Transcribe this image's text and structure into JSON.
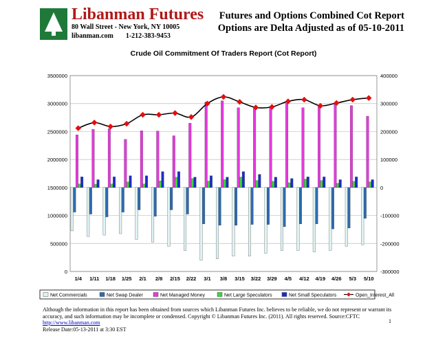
{
  "header": {
    "brand": "Libanman Futures",
    "address": "80 Wall Street - New York, NY 10005",
    "website": "libanman.com",
    "phone": "1-212-383-9453",
    "report_title_1": "Futures and Options Combined Cot Report",
    "report_title_2": "Options are Delta Adjusted as of 05-10-2011"
  },
  "footer": {
    "disclaimer": "Although the information in this report has been obtained from sources which Libanman Futures Inc. believes to be reliable, we do not represent or warrant its accuracy, and such information may be incomplete or condensed. Copyright © Libanman Futures Inc. (2011). All rights reserved. Source:CFTC",
    "link": "http://www.libanman.com",
    "release": "Release Date:05-13-2011 at 3:30 EST",
    "page_number": "1"
  },
  "colors": {
    "net_commercials": "#dff3f3",
    "net_swap_dealer": "#2e6bb0",
    "net_managed_money": "#e838e0",
    "net_large_speculators": "#38d838",
    "net_small_speculators": "#1c2ec8",
    "open_interest": "#e01010",
    "oi_line": "#000000"
  },
  "chart_data": {
    "type": "bar",
    "title": "Crude Oil Commitment Of Traders Report (Cot Report)",
    "categories": [
      "1/4",
      "1/11",
      "1/18",
      "1/25",
      "2/1",
      "2/8",
      "2/15",
      "2/22",
      "3/1",
      "3/8",
      "3/15",
      "3/22",
      "3/29",
      "4/5",
      "4/12",
      "4/19",
      "4/26",
      "5/3",
      "5/10"
    ],
    "left_axis": {
      "min": 0,
      "max": 3500000,
      "step": 500000,
      "ticks": [
        "0",
        "500000",
        "1000000",
        "1500000",
        "2000000",
        "2500000",
        "3000000",
        "3500000"
      ]
    },
    "right_axis": {
      "min": -300000,
      "max": 400000,
      "step": 100000,
      "ticks": [
        "-300000",
        "-200000",
        "-100000",
        "0",
        "100000",
        "200000",
        "300000",
        "400000"
      ]
    },
    "series": [
      {
        "name": "Net Commercials",
        "key": "net_commercials",
        "axis": "right",
        "values": [
          -155000,
          -175000,
          -170000,
          -165000,
          -185000,
          -195000,
          -210000,
          -225000,
          -260000,
          -255000,
          -245000,
          -245000,
          -235000,
          -225000,
          -225000,
          -230000,
          -225000,
          -210000,
          -205000
        ]
      },
      {
        "name": "Net Swap Dealer",
        "key": "net_swap_dealer",
        "axis": "right",
        "values": [
          -88000,
          -95000,
          -105000,
          -88000,
          -80000,
          -103000,
          -80000,
          -95000,
          -130000,
          -135000,
          -135000,
          -132000,
          -132000,
          -140000,
          -130000,
          -130000,
          -148000,
          -145000,
          -110000
        ]
      },
      {
        "name": "Net Managed Money",
        "key": "net_managed_money",
        "axis": "right",
        "values": [
          188000,
          208000,
          210000,
          172000,
          203000,
          202000,
          185000,
          230000,
          306000,
          310000,
          285000,
          287000,
          290000,
          302000,
          285000,
          290000,
          298000,
          293000,
          255000
        ]
      },
      {
        "name": "Net Large Speculators",
        "key": "net_large_speculators",
        "axis": "right",
        "values": [
          13000,
          12000,
          13000,
          20000,
          13000,
          24000,
          37000,
          32000,
          23000,
          28000,
          37000,
          25000,
          22000,
          17000,
          30000,
          25000,
          15000,
          22000,
          20000
        ]
      },
      {
        "name": "Net Small Speculators",
        "key": "net_small_speculators",
        "axis": "right",
        "values": [
          38000,
          28000,
          38000,
          42000,
          42000,
          57000,
          57000,
          37000,
          42000,
          37000,
          57000,
          47000,
          37000,
          32000,
          38000,
          38000,
          28000,
          38000,
          28000
        ]
      },
      {
        "name": "Open_Interest_All",
        "key": "open_interest",
        "axis": "left",
        "type": "line",
        "values": [
          2560000,
          2660000,
          2590000,
          2640000,
          2800000,
          2800000,
          2830000,
          2760000,
          3000000,
          3120000,
          3030000,
          2930000,
          2940000,
          3040000,
          3070000,
          2960000,
          3010000,
          3070000,
          3100000
        ]
      }
    ]
  }
}
